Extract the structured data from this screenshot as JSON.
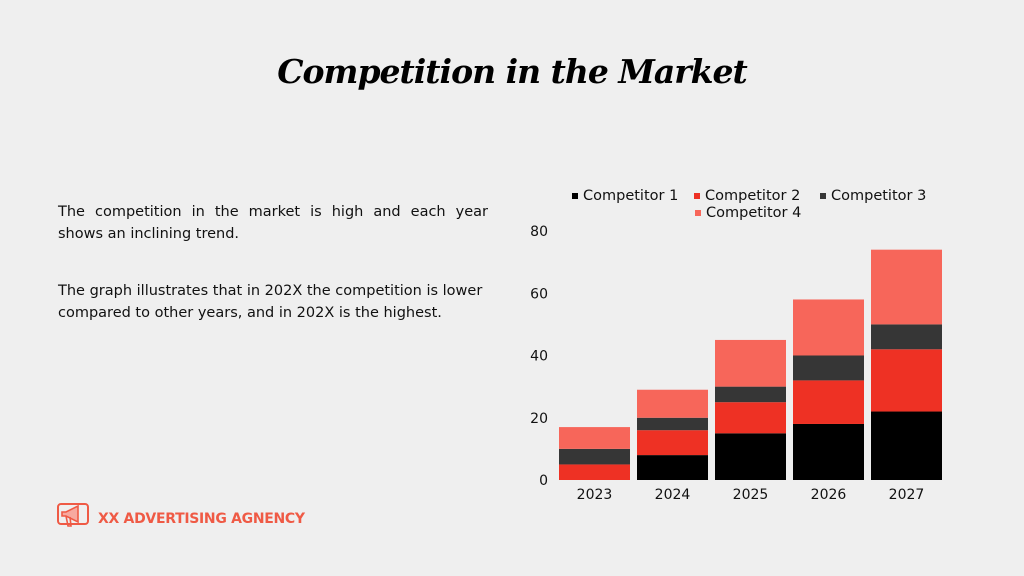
{
  "title": "Competition in the Market",
  "paragraphs": [
    "The competition in the market is high and each year shows an inclining trend.",
    "The graph illustrates that in 202X the competition is lower compared to other years, and in 202X is the highest."
  ],
  "logo": {
    "text": "XX ADVERTISING AGNENCY",
    "icon": "megaphone-icon",
    "color": "#ef5a45"
  },
  "chart_data": {
    "type": "bar",
    "stacked": true,
    "categories": [
      "2023",
      "2024",
      "2025",
      "2026",
      "2027"
    ],
    "series": [
      {
        "name": "Competitor 1",
        "color": "#000000",
        "values": [
          0,
          8,
          15,
          18,
          22
        ]
      },
      {
        "name": "Competitor 2",
        "color": "#ee3124",
        "values": [
          5,
          8,
          10,
          14,
          20
        ]
      },
      {
        "name": "Competitor 3",
        "color": "#363636",
        "values": [
          5,
          4,
          5,
          8,
          8
        ]
      },
      {
        "name": "Competitor 4",
        "color": "#f7665a",
        "values": [
          7,
          9,
          15,
          18,
          24
        ]
      }
    ],
    "yticks": [
      "0",
      "20",
      "40",
      "60",
      "80"
    ],
    "ylim": [
      0,
      80
    ],
    "grid": false,
    "legend": "top"
  }
}
